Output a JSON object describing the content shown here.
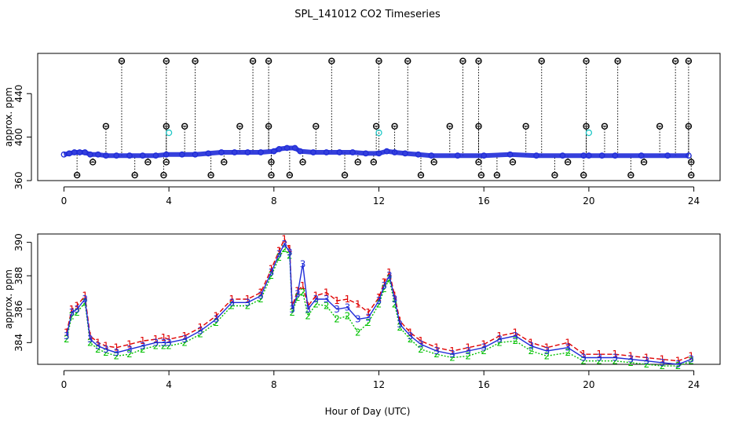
{
  "title": "SPL_141012  CO2 Timeseries",
  "xlabel": "Hour of Day (UTC)",
  "colors": {
    "black": "#000000",
    "blue": "#1f2bd8",
    "cyan": "#20c8c8",
    "green": "#00c000",
    "red": "#e00000"
  },
  "chart_data": [
    {
      "type": "scatter",
      "panel": "top",
      "ylabel": "approx. ppm",
      "xlim": [
        -1,
        25
      ],
      "ylim": [
        360,
        477
      ],
      "xticks": [
        0,
        4,
        8,
        12,
        16,
        20,
        24
      ],
      "yticks": [
        360,
        400,
        440
      ],
      "series": [
        {
          "marker": "blue-circle",
          "x": [
            0.0,
            0.2,
            0.4,
            0.6,
            0.8,
            1.0,
            1.3,
            1.6,
            2.0,
            2.5,
            3.0,
            3.5,
            3.9,
            4.5,
            5.0,
            5.5,
            6.0,
            6.5,
            7.0,
            7.5,
            8.0,
            8.2,
            8.5,
            8.8,
            9.0,
            9.5,
            10.0,
            10.5,
            11.0,
            11.5,
            12.0,
            12.3,
            12.6,
            13.0,
            13.5,
            14.0,
            15.0,
            16.0,
            17.0,
            18.0,
            19.0,
            19.8,
            20.0,
            20.5,
            21.0,
            22.0,
            23.0,
            23.8
          ],
          "y": [
            384,
            385,
            386,
            386,
            386,
            384,
            384,
            383,
            383,
            383,
            383,
            383,
            384,
            384,
            384,
            385,
            386,
            386,
            386,
            386,
            387,
            389,
            390,
            390,
            387,
            386,
            386,
            386,
            386,
            385,
            385,
            387,
            386,
            385,
            384,
            383,
            383,
            383,
            384,
            383,
            383,
            383,
            383,
            383,
            383,
            383,
            383,
            383
          ]
        },
        {
          "marker": "cyan-circle",
          "x": [
            4.0,
            12.0,
            20.0
          ],
          "y": [
            404,
            404,
            404
          ]
        },
        {
          "marker": "black-flag-high",
          "x": [
            2.2,
            3.9,
            5.0,
            7.2,
            7.8,
            10.2,
            12.0,
            13.1,
            15.2,
            15.8,
            18.2,
            19.9,
            21.1,
            23.3,
            23.8
          ],
          "y": [
            470,
            470,
            470,
            470,
            470,
            470,
            470,
            470,
            470,
            470,
            470,
            470,
            470,
            470,
            470
          ]
        },
        {
          "marker": "black-flag-mid",
          "x": [
            1.6,
            3.9,
            4.6,
            6.7,
            7.8,
            9.6,
            11.9,
            12.6,
            14.7,
            15.8,
            17.6,
            19.9,
            20.6,
            22.7,
            23.8
          ],
          "y": [
            410,
            410,
            410,
            410,
            410,
            410,
            410,
            410,
            410,
            410,
            410,
            410,
            410,
            410,
            410
          ]
        },
        {
          "marker": "black-flag-low",
          "x": [
            0.5,
            1.1,
            2.7,
            3.2,
            3.8,
            3.9,
            5.6,
            6.1,
            7.9,
            7.9,
            8.6,
            9.1,
            10.7,
            11.2,
            11.8,
            13.6,
            14.1,
            15.8,
            15.9,
            16.5,
            17.1,
            18.7,
            19.2,
            19.8,
            21.6,
            22.1,
            23.9,
            23.9
          ],
          "y": [
            365,
            377,
            365,
            377,
            365,
            377,
            365,
            377,
            365,
            377,
            365,
            377,
            365,
            377,
            377,
            365,
            377,
            377,
            365,
            365,
            377,
            365,
            377,
            365,
            365,
            377,
            365,
            377
          ]
        }
      ]
    },
    {
      "type": "line",
      "panel": "bottom",
      "ylabel": "approx. ppm",
      "xlim": [
        -1,
        25
      ],
      "ylim": [
        382.7,
        390.5
      ],
      "xticks": [
        0,
        4,
        8,
        12,
        16,
        20,
        24
      ],
      "yticks": [
        384,
        386,
        388,
        390
      ],
      "series": [
        {
          "name": "1",
          "color": "red",
          "x": [
            0.1,
            0.3,
            0.5,
            0.8,
            1.0,
            1.3,
            1.6,
            2.0,
            2.5,
            3.0,
            3.5,
            3.8,
            4.0,
            4.6,
            5.2,
            5.8,
            6.4,
            7.0,
            7.5,
            7.9,
            8.2,
            8.4,
            8.6,
            8.7,
            8.9,
            9.1,
            9.3,
            9.6,
            10.0,
            10.4,
            10.8,
            11.2,
            11.6,
            12.0,
            12.2,
            12.4,
            12.6,
            12.8,
            13.2,
            13.6,
            14.2,
            14.8,
            15.4,
            16.0,
            16.6,
            17.2,
            17.8,
            18.4,
            19.2,
            19.8,
            20.4,
            21.0,
            21.6,
            22.2,
            22.8,
            23.4,
            23.9
          ],
          "y": [
            384.6,
            386.0,
            386.2,
            386.8,
            384.4,
            384.0,
            383.8,
            383.7,
            383.9,
            384.1,
            384.2,
            384.3,
            384.2,
            384.4,
            384.9,
            385.6,
            386.6,
            386.6,
            387.0,
            388.4,
            389.5,
            390.2,
            389.6,
            386.2,
            387.1,
            387.4,
            386.2,
            386.8,
            387.0,
            386.5,
            386.6,
            386.3,
            385.8,
            386.7,
            387.6,
            388.2,
            386.8,
            385.3,
            384.6,
            384.1,
            383.7,
            383.5,
            383.7,
            383.9,
            384.4,
            384.6,
            384.0,
            383.7,
            384.0,
            383.3,
            383.3,
            383.3,
            383.2,
            383.1,
            383.0,
            382.9,
            383.2
          ]
        },
        {
          "name": "2",
          "color": "green",
          "x": [
            0.1,
            0.3,
            0.5,
            0.8,
            1.0,
            1.3,
            1.6,
            2.0,
            2.5,
            3.0,
            3.5,
            3.8,
            4.0,
            4.6,
            5.2,
            5.8,
            6.4,
            7.0,
            7.5,
            7.9,
            8.2,
            8.4,
            8.6,
            8.7,
            8.9,
            9.1,
            9.3,
            9.6,
            10.0,
            10.4,
            10.8,
            11.2,
            11.6,
            12.0,
            12.2,
            12.4,
            12.6,
            12.8,
            13.2,
            13.6,
            14.2,
            14.8,
            15.4,
            16.0,
            16.6,
            17.2,
            17.8,
            18.4,
            19.2,
            19.8,
            20.4,
            21.0,
            21.6,
            22.2,
            22.8,
            23.4,
            23.9
          ],
          "y": [
            384.2,
            385.6,
            385.8,
            386.4,
            384.0,
            383.6,
            383.4,
            383.2,
            383.3,
            383.6,
            383.8,
            383.8,
            383.8,
            384.0,
            384.5,
            385.2,
            386.2,
            386.2,
            386.6,
            388.0,
            389.1,
            389.6,
            389.2,
            385.8,
            386.7,
            387.0,
            385.6,
            386.3,
            386.2,
            385.4,
            385.6,
            384.6,
            385.2,
            386.3,
            387.2,
            387.8,
            386.3,
            384.9,
            384.2,
            383.6,
            383.3,
            383.1,
            383.2,
            383.5,
            384.0,
            384.1,
            383.5,
            383.2,
            383.4,
            382.9,
            382.9,
            382.9,
            382.8,
            382.7,
            382.6,
            382.6,
            382.9
          ]
        },
        {
          "name": "3",
          "color": "blue",
          "x": [
            0.1,
            0.3,
            0.5,
            0.8,
            1.0,
            1.3,
            1.6,
            2.0,
            2.5,
            3.0,
            3.5,
            3.8,
            4.0,
            4.6,
            5.2,
            5.8,
            6.4,
            7.0,
            7.5,
            7.9,
            8.2,
            8.4,
            8.6,
            8.7,
            8.9,
            9.1,
            9.3,
            9.6,
            10.0,
            10.4,
            10.8,
            11.2,
            11.6,
            12.0,
            12.2,
            12.4,
            12.6,
            12.8,
            13.2,
            13.6,
            14.2,
            14.8,
            15.4,
            16.0,
            16.6,
            17.2,
            17.8,
            18.4,
            19.2,
            19.8,
            20.4,
            21.0,
            21.6,
            22.2,
            22.8,
            23.4,
            23.9
          ],
          "y": [
            384.4,
            385.8,
            386.0,
            386.6,
            384.2,
            383.8,
            383.6,
            383.4,
            383.6,
            383.8,
            384.0,
            384.0,
            384.0,
            384.2,
            384.7,
            385.4,
            386.4,
            386.4,
            386.8,
            388.2,
            389.3,
            389.9,
            389.4,
            386.0,
            386.9,
            388.7,
            386.0,
            386.6,
            386.6,
            386.0,
            386.1,
            385.4,
            385.5,
            386.5,
            387.4,
            388.0,
            386.6,
            385.1,
            384.4,
            383.9,
            383.5,
            383.3,
            383.5,
            383.7,
            384.2,
            384.4,
            383.8,
            383.5,
            383.7,
            383.1,
            383.1,
            383.1,
            383.0,
            382.9,
            382.8,
            382.7,
            383.0
          ]
        }
      ]
    }
  ]
}
